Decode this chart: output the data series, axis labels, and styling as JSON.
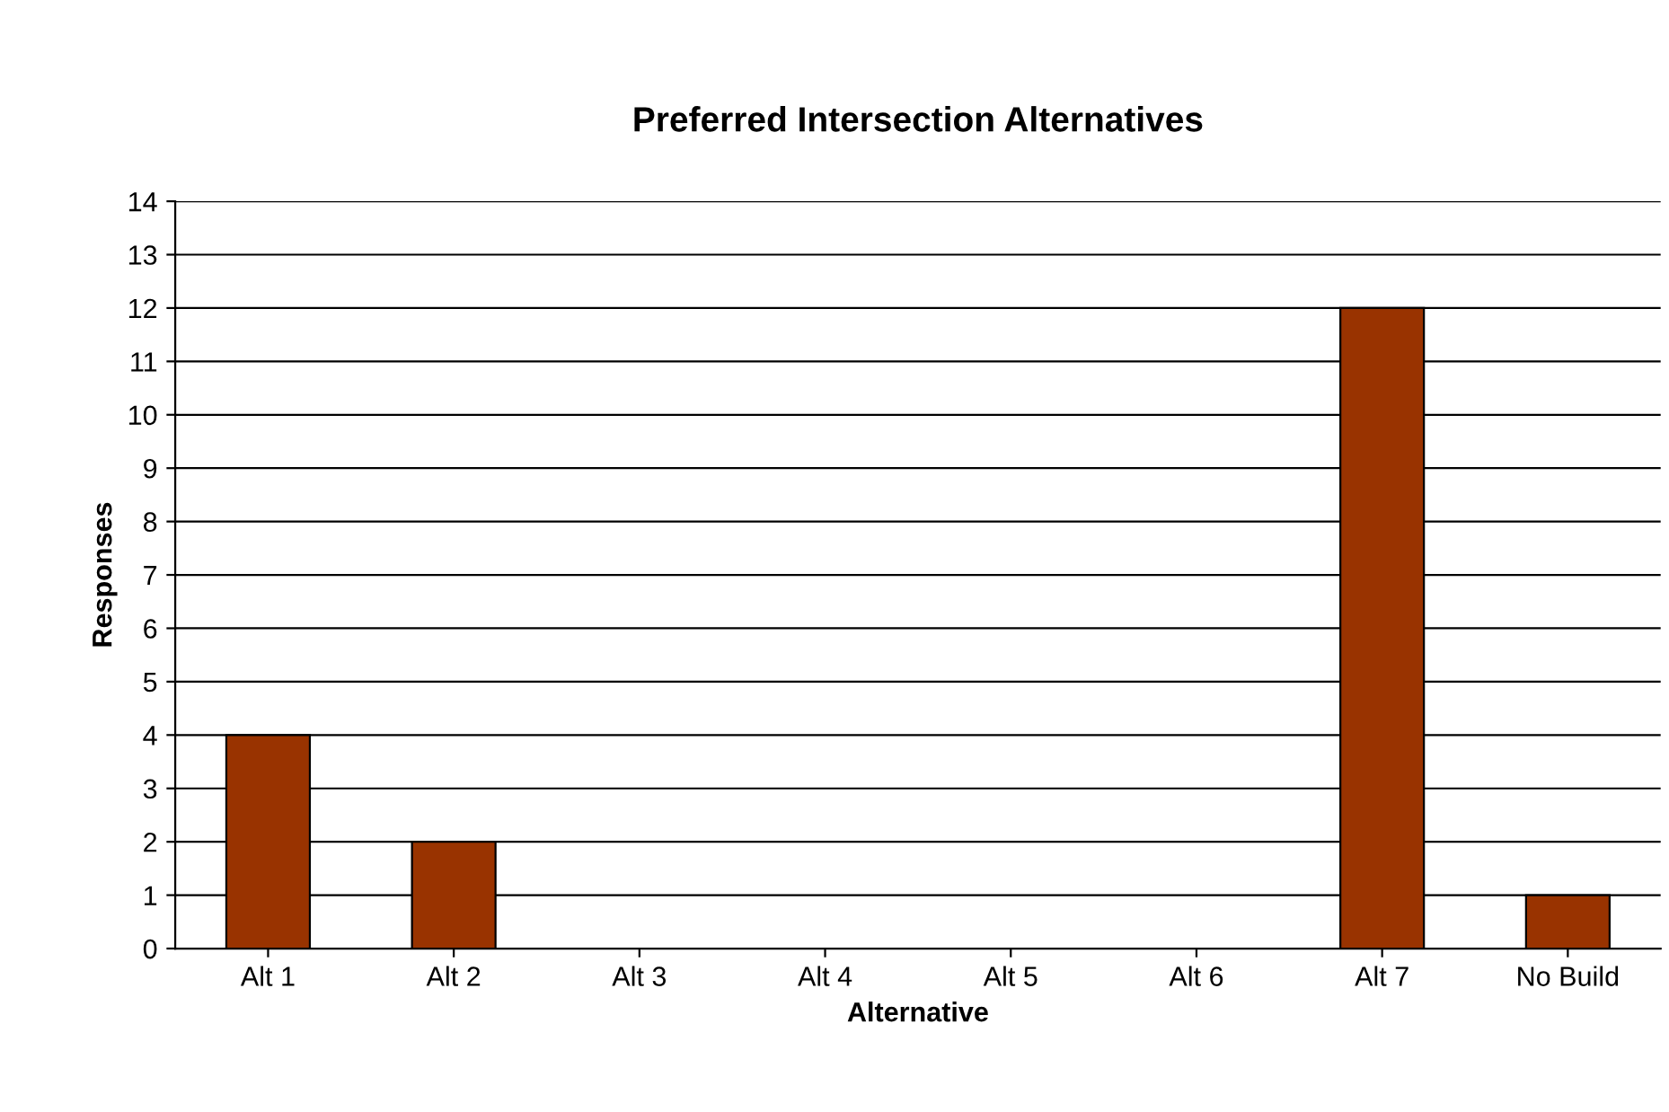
{
  "chart_data": {
    "type": "bar",
    "title": "Preferred Intersection Alternatives",
    "xlabel": "Alternative",
    "ylabel": "Responses",
    "categories": [
      "Alt 1",
      "Alt 2",
      "Alt 3",
      "Alt 4",
      "Alt 5",
      "Alt 6",
      "Alt 7",
      "No Build"
    ],
    "values": [
      4,
      2,
      0,
      0,
      0,
      0,
      12,
      1
    ],
    "color": "#993300",
    "ylim": [
      0,
      14
    ],
    "yticks": [
      0,
      1,
      2,
      3,
      4,
      5,
      6,
      7,
      8,
      9,
      10,
      11,
      12,
      13,
      14
    ],
    "grid": "y",
    "legend": false
  }
}
